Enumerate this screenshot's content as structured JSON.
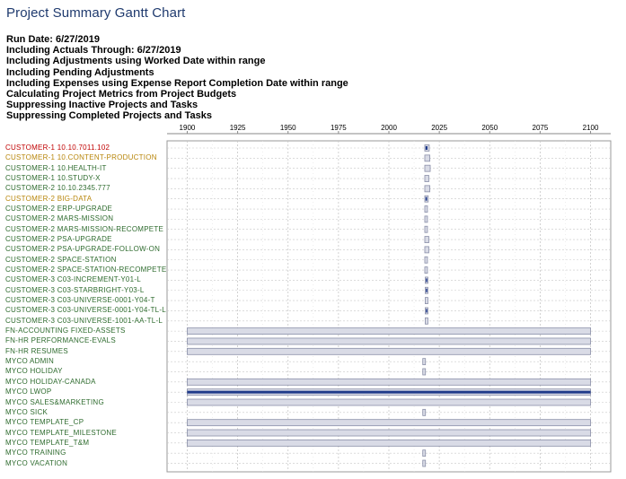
{
  "page": {
    "title": "Project Summary Gantt Chart",
    "criteria": [
      "Run Date: 6/27/2019",
      "Including Actuals Through: 6/27/2019",
      "Including Adjustments using Worked Date within range",
      "Including Pending Adjustments",
      "Including Expenses using Expense Report Completion Date within range",
      "Calculating Project Metrics from Project Budgets",
      "Suppressing Inactive Projects and Tasks",
      "Suppressing Completed Projects and Tasks"
    ]
  },
  "colors": {
    "red_label": "#c00000",
    "orange_label": "#b8860b",
    "green_label": "#2e6b2e",
    "bar_fill": "#d9dbe6",
    "bar_stroke": "#8a8fa8",
    "bar_dark": "#1f3a8a",
    "grid": "#c8c8c8"
  },
  "chart_data": {
    "type": "gantt",
    "title": "",
    "xlabel": "",
    "ylabel": "",
    "xlim": [
      1890,
      2110
    ],
    "xticks": [
      1900,
      1925,
      1950,
      1975,
      2000,
      2025,
      2050,
      2075,
      2100
    ],
    "grid": true,
    "tasks": [
      {
        "name": "CUSTOMER-1 10.10.7011.102",
        "start": 2017.8,
        "end": 2020.0,
        "color": "red",
        "style": "dark"
      },
      {
        "name": "CUSTOMER-1 10.CONTENT-PRODUCTION",
        "start": 2017.8,
        "end": 2020.3,
        "color": "orange",
        "style": "light"
      },
      {
        "name": "CUSTOMER-1 10.HEALTH-IT",
        "start": 2017.8,
        "end": 2020.5,
        "color": "green",
        "style": "light"
      },
      {
        "name": "CUSTOMER-1 10.STUDY-X",
        "start": 2017.8,
        "end": 2019.8,
        "color": "green",
        "style": "light"
      },
      {
        "name": "CUSTOMER-2 10.10.2345.777",
        "start": 2017.8,
        "end": 2020.3,
        "color": "green",
        "style": "light"
      },
      {
        "name": "CUSTOMER-2 BIG-DATA",
        "start": 2017.8,
        "end": 2019.5,
        "color": "orange",
        "style": "dark"
      },
      {
        "name": "CUSTOMER-2 ERP-UPGRADE",
        "start": 2017.8,
        "end": 2019.0,
        "color": "green",
        "style": "light"
      },
      {
        "name": "CUSTOMER-2 MARS-MISSION",
        "start": 2017.8,
        "end": 2019.0,
        "color": "green",
        "style": "light"
      },
      {
        "name": "CUSTOMER-2 MARS-MISSION-RECOMPETE",
        "start": 2017.8,
        "end": 2019.0,
        "color": "green",
        "style": "light"
      },
      {
        "name": "CUSTOMER-2 PSA-UPGRADE",
        "start": 2017.8,
        "end": 2019.8,
        "color": "green",
        "style": "light"
      },
      {
        "name": "CUSTOMER-2 PSA-UPGRADE-FOLLOW-ON",
        "start": 2017.8,
        "end": 2019.8,
        "color": "green",
        "style": "light"
      },
      {
        "name": "CUSTOMER-2 SPACE-STATION",
        "start": 2017.8,
        "end": 2019.0,
        "color": "green",
        "style": "light"
      },
      {
        "name": "CUSTOMER-2 SPACE-STATION-RECOMPETE",
        "start": 2017.8,
        "end": 2019.0,
        "color": "green",
        "style": "light"
      },
      {
        "name": "CUSTOMER-3 C03-INCREMENT-Y01-L",
        "start": 2018.0,
        "end": 2019.0,
        "color": "green",
        "style": "dark"
      },
      {
        "name": "CUSTOMER-3 C03-STARBRIGHT-Y03-L",
        "start": 2018.0,
        "end": 2019.0,
        "color": "green",
        "style": "dark"
      },
      {
        "name": "CUSTOMER-3 C03-UNIVERSE-0001-Y04-T",
        "start": 2018.0,
        "end": 2019.0,
        "color": "green",
        "style": "light"
      },
      {
        "name": "CUSTOMER-3 C03-UNIVERSE-0001-Y04-TL-L",
        "start": 2018.0,
        "end": 2019.0,
        "color": "green",
        "style": "dark"
      },
      {
        "name": "CUSTOMER-3 C03-UNIVERSE-1001-AA-TL-L",
        "start": 2018.0,
        "end": 2019.0,
        "color": "green",
        "style": "light"
      },
      {
        "name": "FN-ACCOUNTING FIXED-ASSETS",
        "start": 1900,
        "end": 2100,
        "color": "green",
        "style": "light"
      },
      {
        "name": "FN-HR PERFORMANCE-EVALS",
        "start": 1900,
        "end": 2100,
        "color": "green",
        "style": "light"
      },
      {
        "name": "FN-HR RESUMES",
        "start": 1900,
        "end": 2100,
        "color": "green",
        "style": "light"
      },
      {
        "name": "MYCO ADMIN",
        "start": 2016.8,
        "end": 2017.8,
        "color": "green",
        "style": "light"
      },
      {
        "name": "MYCO HOLIDAY",
        "start": 2016.8,
        "end": 2017.8,
        "color": "green",
        "style": "light"
      },
      {
        "name": "MYCO HOLIDAY-CANADA",
        "start": 1900,
        "end": 2100,
        "color": "green",
        "style": "light"
      },
      {
        "name": "MYCO LWOP",
        "start": 1900,
        "end": 2100,
        "color": "green",
        "style": "line"
      },
      {
        "name": "MYCO SALES&MARKETING",
        "start": 1900,
        "end": 2100,
        "color": "green",
        "style": "light"
      },
      {
        "name": "MYCO SICK",
        "start": 2016.8,
        "end": 2017.8,
        "color": "green",
        "style": "light"
      },
      {
        "name": "MYCO TEMPLATE_CP",
        "start": 1900,
        "end": 2100,
        "color": "green",
        "style": "light"
      },
      {
        "name": "MYCO TEMPLATE_MILESTONE",
        "start": 1900,
        "end": 2100,
        "color": "green",
        "style": "light"
      },
      {
        "name": "MYCO TEMPLATE_T&M",
        "start": 1900,
        "end": 2100,
        "color": "green",
        "style": "light"
      },
      {
        "name": "MYCO TRAINING",
        "start": 2016.8,
        "end": 2017.8,
        "color": "green",
        "style": "light"
      },
      {
        "name": "MYCO VACATION",
        "start": 2016.8,
        "end": 2017.8,
        "color": "green",
        "style": "light"
      }
    ]
  }
}
